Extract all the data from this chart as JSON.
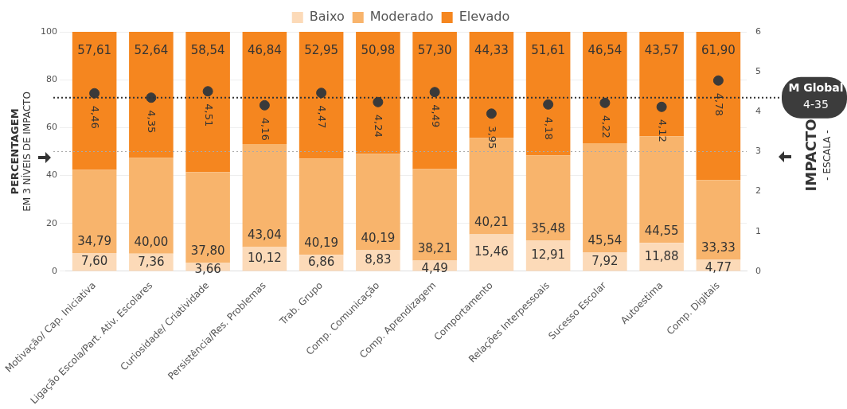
{
  "chart_data": {
    "type": "bar",
    "stacked": true,
    "categories": [
      "Motivação/ Cap. Iniciativa",
      "Ligação Escola/Part. Ativ. Escolares",
      "Curiosidade/ Criatividade",
      "Persistência/Res. Problemas",
      "Trab. Grupo",
      "Comp. Comunicação",
      "Comp. Aprendizagem",
      "Comportamento",
      "Relações Interpessoais",
      "Sucesso Escolar",
      "Autoestima",
      "Comp. Digitais"
    ],
    "series": [
      {
        "name": "Baixo",
        "color": "#fcdab8",
        "values": [
          7.6,
          7.36,
          3.66,
          10.12,
          6.86,
          8.83,
          4.49,
          15.46,
          12.91,
          7.92,
          11.88,
          4.77
        ],
        "value_labels": [
          "7,60",
          "7,36",
          "3,66",
          "10,12",
          "6,86",
          "8,83",
          "4,49",
          "15,46",
          "12,91",
          "7,92",
          "11,88",
          "4,77"
        ]
      },
      {
        "name": "Moderado",
        "color": "#f8b46c",
        "values": [
          34.79,
          40.0,
          37.8,
          43.04,
          40.19,
          40.19,
          38.21,
          40.21,
          35.48,
          45.54,
          44.55,
          33.33
        ],
        "value_labels": [
          "34,79",
          "40,00",
          "37,80",
          "43,04",
          "40,19",
          "40,19",
          "38,21",
          "40,21",
          "35,48",
          "45,54",
          "44,55",
          "33,33"
        ]
      },
      {
        "name": "Elevado",
        "color": "#f5861f",
        "values": [
          57.61,
          52.64,
          58.54,
          46.84,
          52.95,
          50.98,
          57.3,
          44.33,
          51.61,
          46.54,
          43.57,
          61.9
        ],
        "value_labels": [
          "57,61",
          "52,64",
          "58,54",
          "46,84",
          "52,95",
          "50,98",
          "57,30",
          "44,33",
          "51,61",
          "46,54",
          "43,57",
          "61,90"
        ]
      },
      {
        "type": "scatter",
        "axis": "y2",
        "color": "#3a3a3a",
        "x": [
          "Motivação/ Cap. Iniciativa",
          "Ligação Escola/Part. Ativ. Escolares",
          "Curiosidade/ Criatividade",
          "Persistência/Res. Problemas",
          "Trab. Grupo",
          "Comp. Comunicação",
          "Comp. Aprendizagem",
          "Comportamento",
          "Relações Interpessoais",
          "Sucesso Escolar",
          "Autoestima",
          "Comp. Digitais"
        ],
        "values": [
          4.46,
          4.35,
          4.51,
          4.16,
          4.47,
          4.24,
          4.49,
          3.95,
          4.18,
          4.22,
          4.12,
          4.78
        ],
        "value_labels": [
          "4,46",
          "4,35",
          "4,51",
          "4,16",
          "4,47",
          "4,24",
          "4,49",
          "3,95",
          "4,18",
          "4,22",
          "4,12",
          "4,78"
        ]
      }
    ],
    "ylim": [
      0,
      100
    ],
    "yticks": [
      0,
      20,
      40,
      60,
      80,
      100
    ],
    "y2lim": [
      0,
      6
    ],
    "y2ticks": [
      0,
      1,
      2,
      3,
      4,
      5,
      6
    ],
    "ylabel": "PERCENTAGEM\nEM 3 NÍVEIS DE IMPACTO",
    "y2label": "IMPACTO\n- ESCALA -",
    "ref_lines": [
      {
        "axis": "y2",
        "value": 4.35,
        "label": "M Global\n4-35",
        "color": "#333333",
        "line_style": "dotted"
      },
      {
        "axis": "y2",
        "value": 3,
        "label": null,
        "color": "#aaaaaa",
        "line_style": "dotted"
      }
    ],
    "grid": "y",
    "legend": "top",
    "marker": "circle"
  }
}
